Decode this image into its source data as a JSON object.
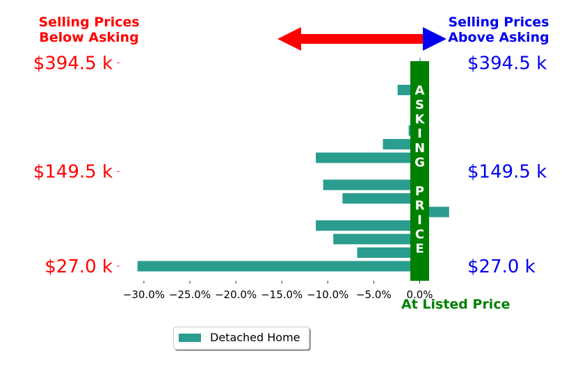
{
  "header": {
    "below": [
      "Selling Prices",
      "Below Asking"
    ],
    "above": [
      "Selling Prices",
      "Above Asking"
    ]
  },
  "colors": {
    "below": "#ff0000",
    "above": "#0000ee",
    "asking": "#008000",
    "bar": "#2a9d8f",
    "arrow_shaft": "#ff0000",
    "arrow_head_right": "#0000ee"
  },
  "asking_price_letters": [
    "A",
    "S",
    "K",
    "I",
    "N",
    "G",
    "",
    "P",
    "R",
    "I",
    "C",
    "E"
  ],
  "at_listed_label": "At Listed Price",
  "legend": {
    "label": "Detached Home"
  },
  "chart_data": {
    "type": "bar",
    "orientation": "horizontal",
    "xlim": [
      -0.32,
      0.02
    ],
    "x_ticks": [
      {
        "value": -0.3,
        "label": "−30.0%"
      },
      {
        "value": -0.25,
        "label": "−25.0%"
      },
      {
        "value": -0.2,
        "label": "−20.0%"
      },
      {
        "value": -0.15,
        "label": "−15.0%"
      },
      {
        "value": -0.1,
        "label": "−10.0%"
      },
      {
        "value": -0.05,
        "label": "−5.0%"
      },
      {
        "value": 0.0,
        "label": "0.0%"
      }
    ],
    "y_ticks": [
      {
        "index": 0,
        "left_label": "$27.0 k",
        "right_label": "$27.0 k"
      },
      {
        "index": 7,
        "left_label": "$149.5 k",
        "right_label": "$149.5 k"
      },
      {
        "index": 15,
        "left_label": "$394.5 k",
        "right_label": "$394.5 k"
      }
    ],
    "series": [
      {
        "name": "Detached Home",
        "values": [
          -0.307,
          -0.068,
          -0.094,
          -0.113,
          0.032,
          -0.084,
          -0.105,
          0.001,
          -0.113,
          -0.04,
          -0.012,
          0.001,
          0.001,
          -0.024,
          0.001,
          0.001
        ]
      }
    ]
  }
}
